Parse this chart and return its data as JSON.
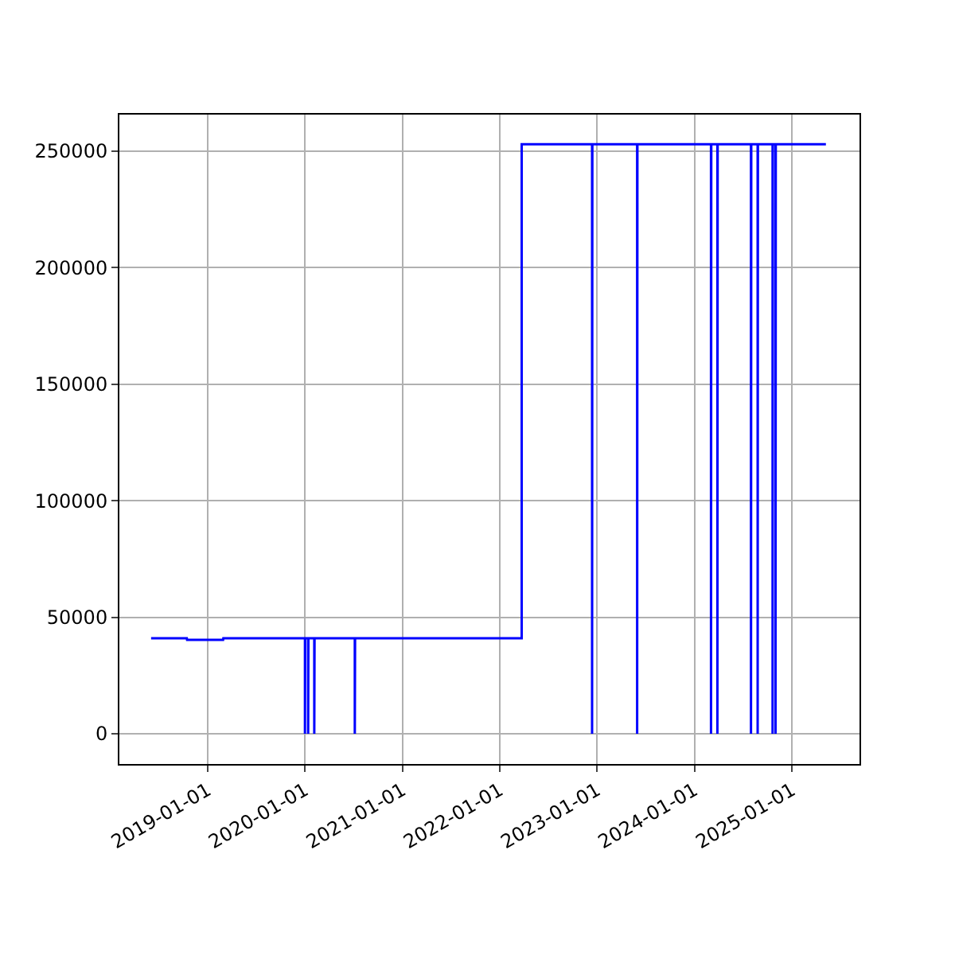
{
  "chart_data": {
    "type": "line",
    "x": [
      "2018-06-03",
      "2018-10-15",
      "2018-10-16",
      "2019-02-28",
      "2019-03-01",
      "2020-01-01",
      "2020-01-01",
      "2020-01-02",
      "2020-01-13",
      "2020-01-13",
      "2020-01-14",
      "2020-02-05",
      "2020-02-05",
      "2020-02-06",
      "2020-07-06",
      "2020-07-06",
      "2020-07-07",
      "2022-03-24",
      "2022-03-24",
      "2022-12-13",
      "2022-12-13",
      "2022-12-14",
      "2023-05-31",
      "2023-05-31",
      "2023-06-01",
      "2024-03-03",
      "2024-03-03",
      "2024-03-04",
      "2024-03-27",
      "2024-03-27",
      "2024-03-28",
      "2024-07-31",
      "2024-07-31",
      "2024-08-01",
      "2024-08-25",
      "2024-08-25",
      "2024-08-26",
      "2024-10-20",
      "2024-10-20",
      "2024-10-21",
      "2024-10-31",
      "2024-10-31",
      "2024-11-01",
      "2025-05-08"
    ],
    "series": [
      {
        "color": "#0000ff",
        "values": [
          41000,
          41000,
          40300,
          40300,
          41000,
          41000,
          0,
          41000,
          41000,
          0,
          41000,
          41000,
          0,
          41000,
          41000,
          0,
          41000,
          41000,
          253000,
          253000,
          0,
          253000,
          253000,
          0,
          253000,
          253000,
          0,
          253000,
          253000,
          0,
          253000,
          253000,
          0,
          253000,
          253000,
          0,
          253000,
          253000,
          0,
          253000,
          253000,
          0,
          253000,
          253000
        ]
      }
    ],
    "xlim": [
      "2018-02-04",
      "2025-09-11"
    ],
    "xticks": [
      "2019-01-01",
      "2020-01-01",
      "2021-01-01",
      "2022-01-01",
      "2023-01-01",
      "2024-01-01",
      "2025-01-01"
    ],
    "ylim": [
      -13000,
      265700
    ],
    "yticks": [
      0,
      50000,
      100000,
      150000,
      200000,
      250000
    ],
    "grid": true,
    "marker": "none",
    "line_style": "solid"
  }
}
